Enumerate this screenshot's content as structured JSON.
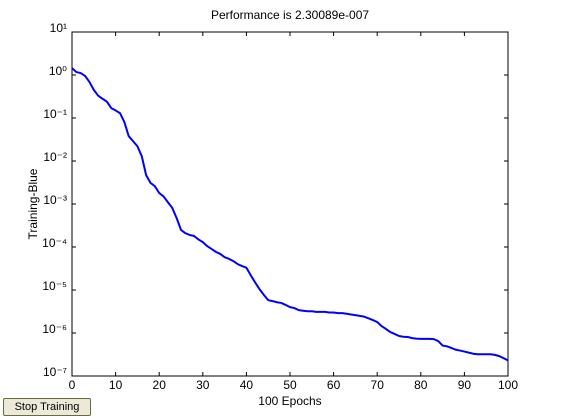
{
  "chart_data": {
    "type": "line",
    "title": "Performance is 2.30089e-007",
    "xlabel": "100 Epochs",
    "ylabel": "Training-Blue",
    "log_y": true,
    "grid": false,
    "xlim": [
      0,
      100
    ],
    "xticks": [
      0,
      10,
      20,
      30,
      40,
      50,
      60,
      70,
      80,
      90,
      100
    ],
    "ylim": [
      1e-07,
      10
    ],
    "yticks": [
      {
        "value": 1e-07,
        "label": "10⁻⁷"
      },
      {
        "value": 1e-06,
        "label": "10⁻⁶"
      },
      {
        "value": 1e-05,
        "label": "10⁻⁵"
      },
      {
        "value": 0.0001,
        "label": "10⁻⁴"
      },
      {
        "value": 0.001,
        "label": "10⁻³"
      },
      {
        "value": 0.01,
        "label": "10⁻²"
      },
      {
        "value": 0.1,
        "label": "10⁻¹"
      },
      {
        "value": 1,
        "label": "10⁰"
      },
      {
        "value": 10,
        "label": "10¹"
      }
    ],
    "series": [
      {
        "color": "#0000ff",
        "x": [
          0,
          1,
          2,
          3,
          4,
          5,
          6,
          7,
          8,
          9,
          10,
          11,
          12,
          13,
          14,
          15,
          16,
          17,
          18,
          19,
          20,
          21,
          22,
          23,
          24,
          25,
          26,
          27,
          28,
          29,
          30,
          31,
          32,
          33,
          34,
          35,
          36,
          37,
          38,
          39,
          40,
          41,
          42,
          43,
          44,
          45,
          46,
          47,
          48,
          49,
          50,
          51,
          52,
          53,
          54,
          55,
          56,
          57,
          58,
          59,
          60,
          61,
          62,
          63,
          64,
          65,
          66,
          67,
          68,
          69,
          70,
          71,
          72,
          73,
          74,
          75,
          76,
          77,
          78,
          79,
          80,
          81,
          82,
          83,
          84,
          85,
          86,
          87,
          88,
          89,
          90,
          91,
          92,
          93,
          94,
          95,
          96,
          97,
          98,
          99,
          100
        ],
        "values": [
          1.45,
          1.17,
          1.11,
          0.95,
          0.69,
          0.45,
          0.33,
          0.28,
          0.24,
          0.17,
          0.15,
          0.13,
          0.081,
          0.038,
          0.029,
          0.022,
          0.013,
          0.0047,
          0.0031,
          0.0026,
          0.0018,
          0.0015,
          0.0011,
          0.00081,
          0.00047,
          0.00025,
          0.00021,
          0.00019,
          0.00018,
          0.00015,
          0.00013,
          0.000105,
          9e-05,
          7.7e-05,
          6.9e-05,
          5.8e-05,
          5.3e-05,
          4.7e-05,
          4e-05,
          3.6e-05,
          3.3e-05,
          2.2e-05,
          1.5e-05,
          1.05e-05,
          7.7e-06,
          5.8e-06,
          5.5e-06,
          5.2e-06,
          5e-06,
          4.5e-06,
          4e-06,
          3.8e-06,
          3.4e-06,
          3.3e-06,
          3.2e-06,
          3.2e-06,
          3.1e-06,
          3.1e-06,
          3.1e-06,
          3e-06,
          3e-06,
          2.9e-06,
          2.9e-06,
          2.8e-06,
          2.7e-06,
          2.6e-06,
          2.5e-06,
          2.4e-06,
          2.2e-06,
          2e-06,
          1.8e-06,
          1.45e-06,
          1.24e-06,
          1.05e-06,
          9.5e-07,
          8.5e-07,
          8.2e-07,
          8.1e-07,
          7.6e-07,
          7.4e-07,
          7.3e-07,
          7.3e-07,
          7.3e-07,
          7.2e-07,
          6.5e-07,
          5.1e-07,
          4.9e-07,
          4.5e-07,
          4.1e-07,
          3.9e-07,
          3.7e-07,
          3.5e-07,
          3.3e-07,
          3.2e-07,
          3.2e-07,
          3.2e-07,
          3.2e-07,
          3.1e-07,
          2.9e-07,
          2.6e-07,
          2.3e-07
        ]
      }
    ]
  },
  "button": {
    "label": "Stop Training"
  }
}
